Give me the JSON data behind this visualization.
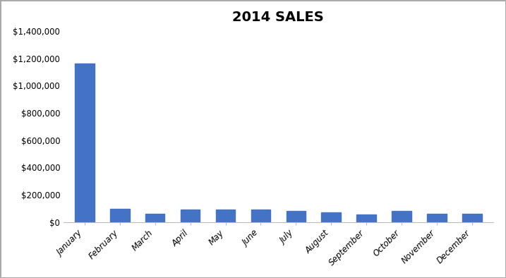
{
  "title": "2014 SALES",
  "categories": [
    "January",
    "February",
    "March",
    "April",
    "May",
    "June",
    "July",
    "August",
    "September",
    "October",
    "November",
    "December"
  ],
  "values": [
    1160000,
    95000,
    60000,
    90000,
    90000,
    92000,
    80000,
    68000,
    57000,
    82000,
    60000,
    58000
  ],
  "bar_color": "#4472C4",
  "ylim": [
    0,
    1400000
  ],
  "yticks": [
    0,
    200000,
    400000,
    600000,
    800000,
    1000000,
    1200000,
    1400000
  ],
  "background_color": "#FFFFFF",
  "title_fontsize": 14,
  "tick_fontsize": 8.5,
  "bar_width": 0.55,
  "spine_color": "#BBBBBB",
  "outer_border_color": "#AAAAAA"
}
